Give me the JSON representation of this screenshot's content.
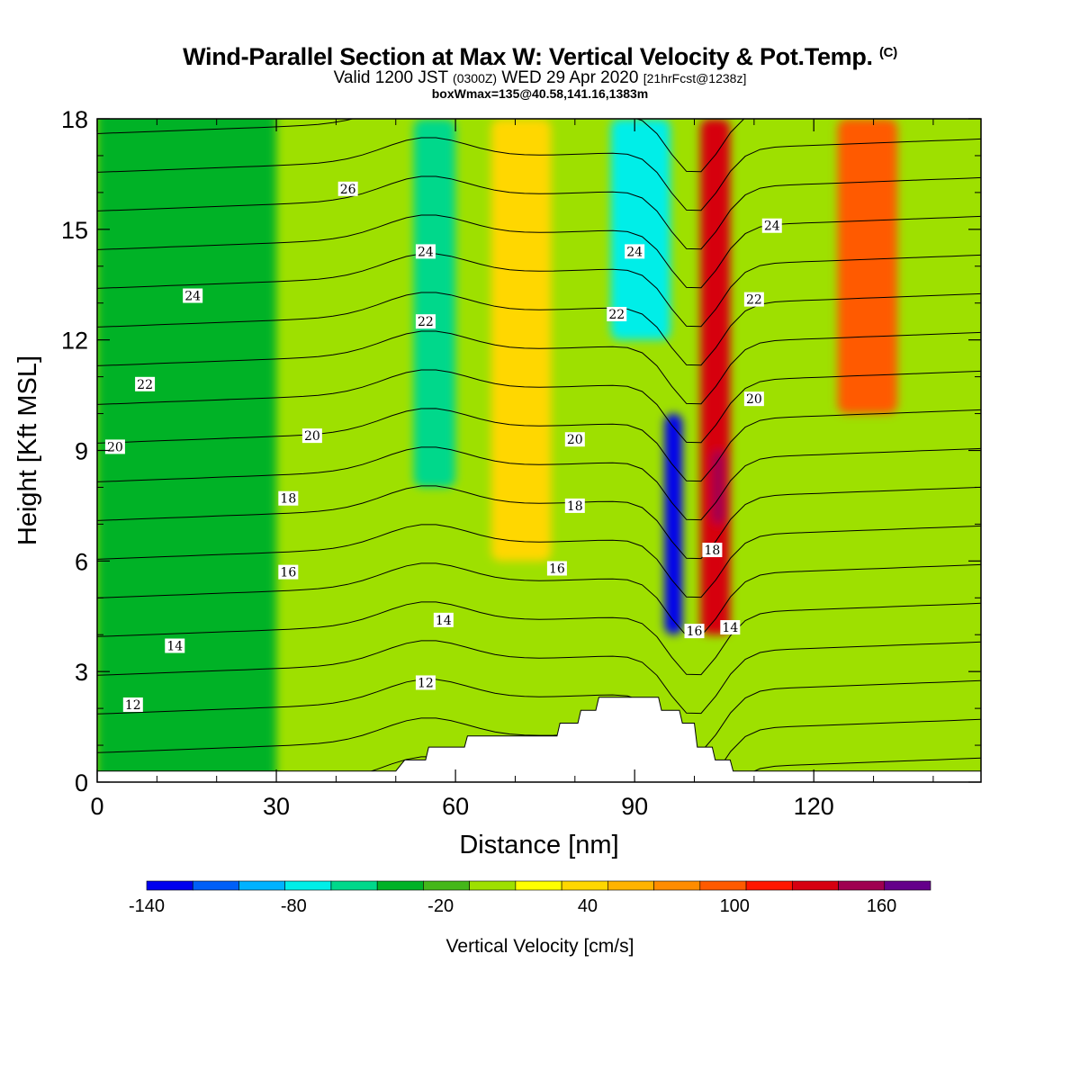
{
  "header": {
    "title": "Wind-Parallel Section at Max W: Vertical Velocity & Pot.Temp.",
    "copyright": "(C)",
    "valid_prefix": "Valid 1200 JST",
    "valid_z": "(0300Z)",
    "valid_date": "WED 29 Apr 2020",
    "forecast": "[21hrFcst@1238z]",
    "box_info": "boxWmax=135@40.58,141.16,1383m"
  },
  "chart_data": {
    "type": "heatmap",
    "title": "Wind-Parallel Section at Max W: Vertical Velocity & Pot.Temp.",
    "xlabel": "Distance [nm]",
    "ylabel": "Height [Kft MSL]",
    "xlim": [
      0,
      148
    ],
    "ylim": [
      0,
      18
    ],
    "xticks": [
      "0",
      "30",
      "60",
      "90",
      "120"
    ],
    "yticks": [
      "0",
      "3",
      "6",
      "9",
      "12",
      "15",
      "18"
    ],
    "colorbar": {
      "label": "Vertical Velocity [cm/s]",
      "tick_labels": [
        "-140",
        "-80",
        "-20",
        "40",
        "100",
        "160"
      ],
      "tick_values": [
        -140,
        -80,
        -20,
        40,
        100,
        160
      ],
      "range": [
        -140,
        180
      ],
      "step": 20,
      "colors": [
        "#0000ee",
        "#005ff7",
        "#00b2ff",
        "#00eee8",
        "#00d88b",
        "#00b227",
        "#44b71a",
        "#9ee000",
        "#ffff00",
        "#ffd700",
        "#ffb300",
        "#ff8c00",
        "#ff5a00",
        "#ff1600",
        "#d60010",
        "#9f0050",
        "#64008a"
      ]
    },
    "vertical_velocity_bands": [
      {
        "x": [
          0,
          30
        ],
        "w": -22,
        "note": "broad weak sinking region left"
      },
      {
        "x": [
          53,
          60
        ],
        "w": -45,
        "top_kft": [
          8,
          18
        ]
      },
      {
        "x": [
          66,
          76
        ],
        "w": 55,
        "top_kft": [
          6,
          18
        ]
      },
      {
        "x": [
          86,
          96
        ],
        "w": -75,
        "top_kft": [
          12,
          18
        ]
      },
      {
        "x": [
          95,
          98
        ],
        "w": -130,
        "top_kft": [
          4,
          10
        ]
      },
      {
        "x": [
          101,
          106
        ],
        "w": 150,
        "top_kft": [
          4,
          18
        ]
      },
      {
        "x": [
          103,
          105
        ],
        "w": 170,
        "top_kft": [
          7,
          9
        ]
      },
      {
        "x": [
          124,
          134
        ],
        "w": 100,
        "top_kft": [
          10,
          18
        ]
      }
    ],
    "theta_contour_labels": [
      {
        "value": "12",
        "x": 6,
        "y": 2.1
      },
      {
        "value": "14",
        "x": 13,
        "y": 3.7
      },
      {
        "value": "16",
        "x": 32,
        "y": 5.7
      },
      {
        "value": "18",
        "x": 32,
        "y": 7.7
      },
      {
        "value": "20",
        "x": 3,
        "y": 9.1
      },
      {
        "value": "22",
        "x": 8,
        "y": 10.8
      },
      {
        "value": "24",
        "x": 16,
        "y": 13.2
      },
      {
        "value": "26",
        "x": 42,
        "y": 16.1
      },
      {
        "value": "20",
        "x": 36,
        "y": 9.4
      },
      {
        "value": "24",
        "x": 55,
        "y": 14.4
      },
      {
        "value": "22",
        "x": 55,
        "y": 12.5
      },
      {
        "value": "14",
        "x": 58,
        "y": 4.4
      },
      {
        "value": "12",
        "x": 55,
        "y": 2.7
      },
      {
        "value": "16",
        "x": 77,
        "y": 5.8
      },
      {
        "value": "18",
        "x": 80,
        "y": 7.5
      },
      {
        "value": "20",
        "x": 80,
        "y": 9.3
      },
      {
        "value": "22",
        "x": 87,
        "y": 12.7
      },
      {
        "value": "24",
        "x": 90,
        "y": 14.4
      },
      {
        "value": "16",
        "x": 100,
        "y": 4.1
      },
      {
        "value": "18",
        "x": 103,
        "y": 6.3
      },
      {
        "value": "14",
        "x": 106,
        "y": 4.2
      },
      {
        "value": "20",
        "x": 110,
        "y": 10.4
      },
      {
        "value": "22",
        "x": 110,
        "y": 13.1
      },
      {
        "value": "24",
        "x": 113,
        "y": 15.1
      }
    ],
    "terrain_steps": [
      [
        0,
        0.3
      ],
      [
        50,
        0.3
      ],
      [
        51.5,
        0.6
      ],
      [
        55,
        0.6
      ],
      [
        55.5,
        0.95
      ],
      [
        61.5,
        0.95
      ],
      [
        62,
        1.25
      ],
      [
        77,
        1.25
      ],
      [
        77.5,
        1.6
      ],
      [
        80.5,
        1.6
      ],
      [
        81,
        1.95
      ],
      [
        83.5,
        1.95
      ],
      [
        84,
        2.3
      ],
      [
        94,
        2.3
      ],
      [
        94.5,
        1.95
      ],
      [
        97.5,
        1.95
      ],
      [
        98,
        1.6
      ],
      [
        100,
        1.6
      ],
      [
        100.5,
        0.95
      ],
      [
        103,
        0.95
      ],
      [
        103.5,
        0.6
      ],
      [
        106,
        0.6
      ],
      [
        106.5,
        0.3
      ],
      [
        148,
        0.3
      ]
    ]
  }
}
